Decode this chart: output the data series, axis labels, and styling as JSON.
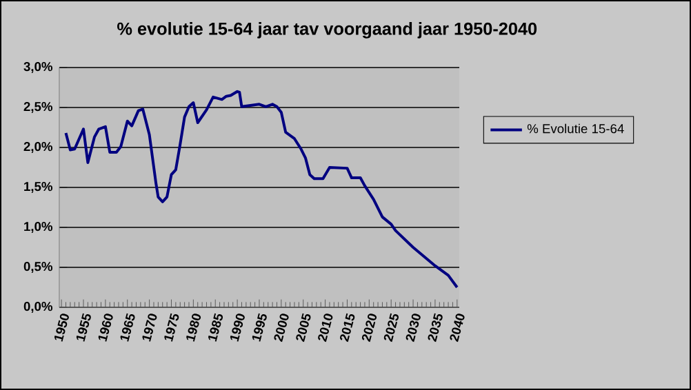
{
  "chart_data": {
    "type": "line",
    "title": "% evolutie 15-64 jaar tav voorgaand jaar 1950-2040",
    "series": [
      {
        "name": "% Evolutie 15-64",
        "color": "#000080",
        "x": [
          1951,
          1952,
          1953,
          1955,
          1956,
          1957.5,
          1958.5,
          1960,
          1961,
          1962.5,
          1963.5,
          1965,
          1966,
          1967.5,
          1968.5,
          1970,
          1971.5,
          1972,
          1973,
          1974,
          1975,
          1976,
          1977,
          1978,
          1979,
          1980,
          1981,
          1983,
          1984.5,
          1986.5,
          1987.5,
          1988.5,
          1990,
          1990.5,
          1991,
          1995,
          1996.5,
          1998,
          1999,
          2000,
          2001,
          2003,
          2004.5,
          2005.5,
          2006.5,
          2007.5,
          2009.5,
          2011,
          2015,
          2016,
          2018,
          2019,
          2021,
          2023,
          2025,
          2026,
          2030,
          2035,
          2038,
          2040
        ],
        "values": [
          2.18,
          1.97,
          1.98,
          2.23,
          1.81,
          2.13,
          2.23,
          2.26,
          1.94,
          1.94,
          2.01,
          2.33,
          2.27,
          2.46,
          2.48,
          2.16,
          1.55,
          1.38,
          1.32,
          1.38,
          1.66,
          1.72,
          2.04,
          2.38,
          2.51,
          2.56,
          2.31,
          2.47,
          2.63,
          2.6,
          2.64,
          2.65,
          2.7,
          2.69,
          2.51,
          2.54,
          2.51,
          2.54,
          2.51,
          2.44,
          2.19,
          2.11,
          1.98,
          1.87,
          1.66,
          1.61,
          1.61,
          1.75,
          1.74,
          1.62,
          1.62,
          1.52,
          1.35,
          1.13,
          1.04,
          0.96,
          0.75,
          0.52,
          0.4,
          0.25
        ]
      }
    ],
    "xlim": [
      1949.5,
      2040.5
    ],
    "xticks": [
      1950,
      1955,
      1960,
      1965,
      1970,
      1975,
      1980,
      1985,
      1990,
      1995,
      2000,
      2005,
      2010,
      2015,
      2020,
      2025,
      2030,
      2035,
      2040
    ],
    "ylim": [
      0,
      3
    ],
    "yticks": [
      {
        "value": 0,
        "label": "0,0%"
      },
      {
        "value": 0.5,
        "label": "0,5%"
      },
      {
        "value": 1,
        "label": "1,0%"
      },
      {
        "value": 1.5,
        "label": "1,5%"
      },
      {
        "value": 2,
        "label": "2,0%"
      },
      {
        "value": 2.5,
        "label": "2,5%"
      },
      {
        "value": 3,
        "label": "3,0%"
      }
    ],
    "grid": "y",
    "legend": "right"
  }
}
